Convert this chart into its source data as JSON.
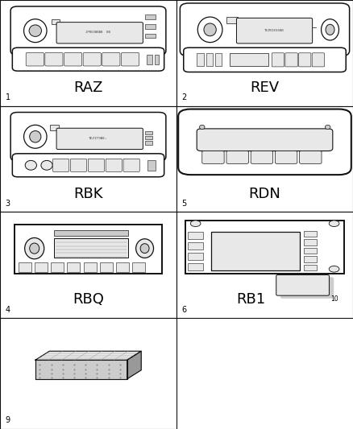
{
  "background_color": "#ffffff",
  "grid_color": "#000000",
  "cell_labels": [
    {
      "id": "1",
      "name": "RAZ",
      "row": 0,
      "col": 0
    },
    {
      "id": "2",
      "name": "REV",
      "row": 0,
      "col": 1
    },
    {
      "id": "3",
      "name": "RBK",
      "row": 1,
      "col": 0
    },
    {
      "id": "5",
      "name": "RDN",
      "row": 1,
      "col": 1
    },
    {
      "id": "4",
      "name": "RBQ",
      "row": 2,
      "col": 0
    },
    {
      "id": "6",
      "name": "RB1",
      "row": 2,
      "col": 1
    },
    {
      "id": "9",
      "name": "",
      "row": 3,
      "col": 0
    }
  ],
  "fig_width": 4.38,
  "fig_height": 5.33,
  "lc": "#111111",
  "white": "#ffffff",
  "lgray": "#e8e8e8",
  "mgray": "#cccccc",
  "dgray": "#999999",
  "label_fs": 13,
  "id_fs": 7
}
